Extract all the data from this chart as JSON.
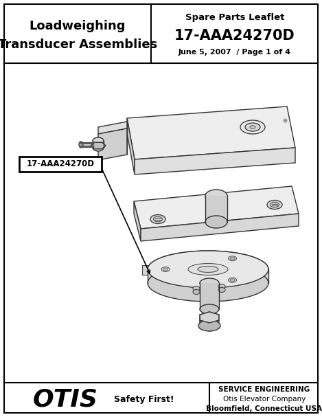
{
  "title_left_line1": "Loadweighing",
  "title_left_line2": "Transducer Assemblies",
  "title_right_line1": "Spare Parts Leaflet",
  "title_right_line2": "17-AAA24270D",
  "title_right_line3": "June 5, 2007  / Page 1 of 4",
  "part_label": "17-AAA24270D",
  "footer_logo": "OTIS",
  "footer_safety": "Safety First!",
  "footer_service_line1": "SERVICE ENGINEERING",
  "footer_service_line2": "Otis Elevator Company",
  "footer_service_line3": "Bloomfield, Connecticut USA",
  "bg_color": "#ffffff",
  "border_color": "#000000",
  "fig_w": 4.69,
  "fig_h": 6.07,
  "dpi": 100
}
